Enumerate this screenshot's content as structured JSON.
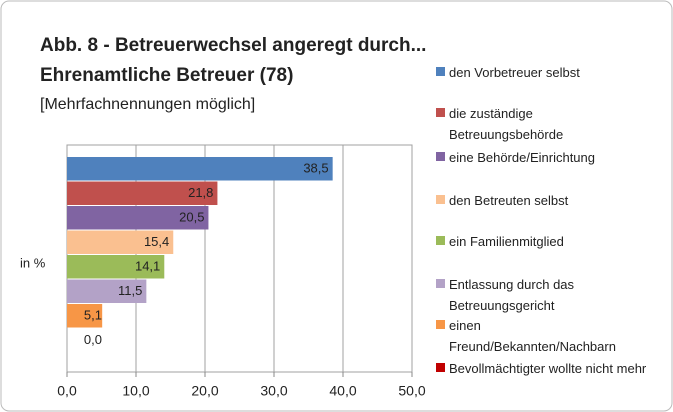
{
  "chart_data": {
    "type": "bar",
    "orientation": "horizontal",
    "title": "Abb. 8 - Betreuerwechsel angeregt durch...",
    "subtitle_bold": "Ehrenamtliche Betreuer (78)",
    "subtitle": "[Mehrfachnennungen möglich]",
    "y_label": "in %",
    "series": [
      {
        "name": "den Vorbetreuer selbst",
        "color": "#4f81bd",
        "values": [
          38.5
        ],
        "value_labels": [
          "38,5"
        ]
      },
      {
        "name": "die zuständige Betreuungsbehörde",
        "color": "#c0504d",
        "values": [
          21.8
        ],
        "value_labels": [
          "21,8"
        ]
      },
      {
        "name": "eine Behörde/Einrichtung",
        "color": "#8064a2",
        "values": [
          20.5
        ],
        "value_labels": [
          "20,5"
        ]
      },
      {
        "name": "den Betreuten selbst",
        "color": "#fac090",
        "values": [
          15.4
        ],
        "value_labels": [
          "15,4"
        ]
      },
      {
        "name": "ein Familienmitglied",
        "color": "#9bbb59",
        "values": [
          14.1
        ],
        "value_labels": [
          "14,1"
        ]
      },
      {
        "name": "Entlassung durch das Betreuungsgericht",
        "color": "#b3a2c7",
        "values": [
          11.5
        ],
        "value_labels": [
          "11,5"
        ]
      },
      {
        "name": "einen Freund/Bekannten/Nachbarn",
        "color": "#f79646",
        "values": [
          5.1
        ],
        "value_labels": [
          "5,1"
        ]
      },
      {
        "name": "Bevollmächtigter wollte nicht mehr",
        "color": "#c00000",
        "values": [
          0.0
        ],
        "value_labels": [
          "0,0"
        ]
      }
    ],
    "xlim": [
      0,
      50
    ],
    "xticks": [
      {
        "value": 0,
        "label": "0,0"
      },
      {
        "value": 10,
        "label": "10,0"
      },
      {
        "value": 20,
        "label": "20,0"
      },
      {
        "value": 30,
        "label": "30,0"
      },
      {
        "value": 40,
        "label": "40,0"
      },
      {
        "value": 50,
        "label": "50,0"
      }
    ],
    "grid": true,
    "legend": "right"
  }
}
